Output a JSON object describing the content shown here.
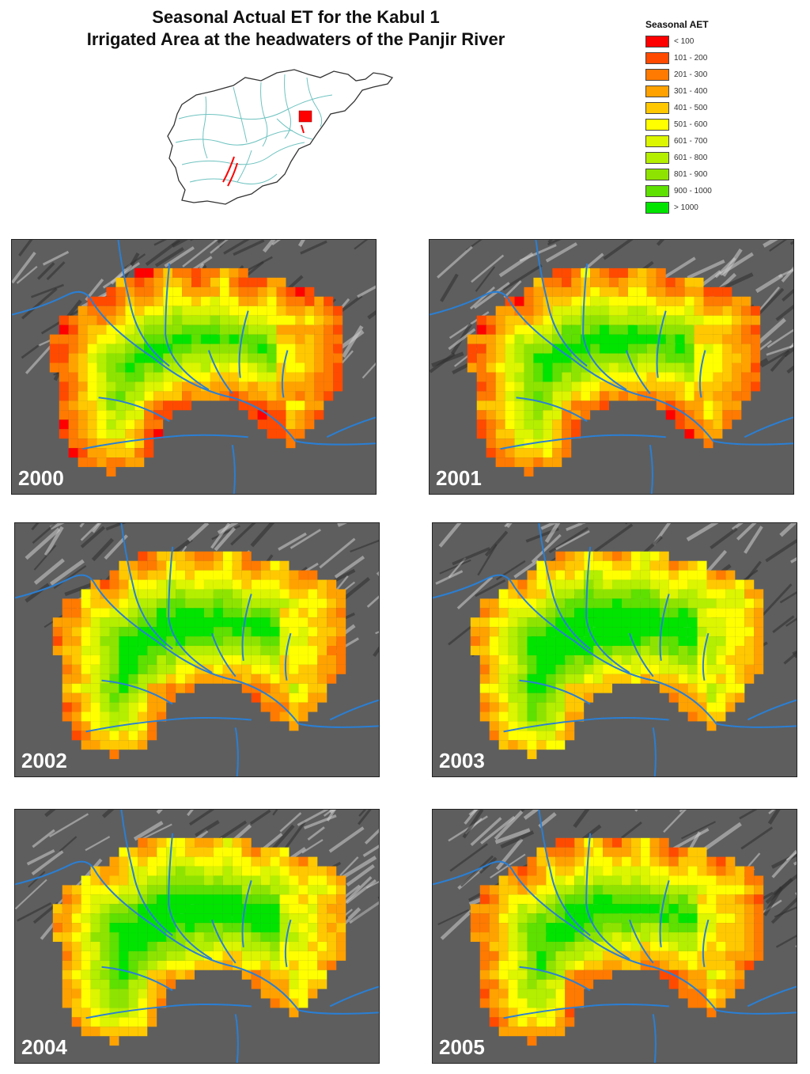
{
  "title": {
    "line1": "Seasonal Actual ET for the Kabul 1",
    "line2": "Irrigated Area at the headwaters of the Panjir River"
  },
  "legend": {
    "title": "Seasonal AET",
    "classes": [
      {
        "label": "< 100",
        "color": "#ff0000"
      },
      {
        "label": "101 - 200",
        "color": "#ff4a00"
      },
      {
        "label": "201 - 300",
        "color": "#ff7a00"
      },
      {
        "label": "301 - 400",
        "color": "#ffa200"
      },
      {
        "label": "401 - 500",
        "color": "#ffc800"
      },
      {
        "label": "501 - 600",
        "color": "#ffff00"
      },
      {
        "label": "601 - 700",
        "color": "#dcf500"
      },
      {
        "label": "601 - 800",
        "color": "#b4ee00"
      },
      {
        "label": "801 - 900",
        "color": "#8ee400"
      },
      {
        "label": "900 - 1000",
        "color": "#5ee000"
      },
      {
        "label": "> 1000",
        "color": "#00e400"
      }
    ]
  },
  "panels": [
    {
      "year": "2000"
    },
    {
      "year": "2001"
    },
    {
      "year": "2002"
    },
    {
      "year": "2003"
    },
    {
      "year": "2004"
    },
    {
      "year": "2005"
    }
  ],
  "inset_map": {
    "outline_color": "#333333",
    "river_color": "#6ec3c0",
    "highlight_color": "#ff0000"
  },
  "river_color": "#2a7fd4"
}
